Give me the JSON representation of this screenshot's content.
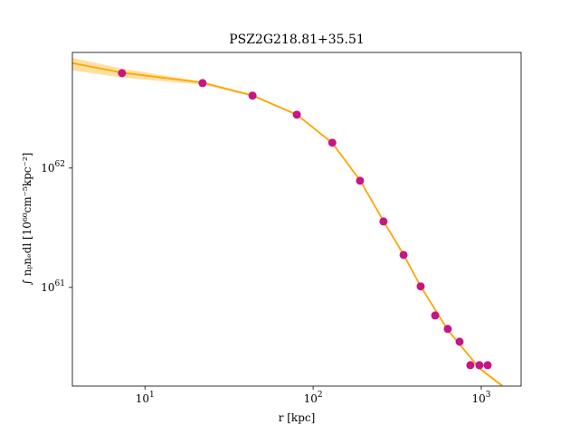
{
  "chart_data": {
    "type": "scatter",
    "title": "PSZ2G218.81+35.51",
    "x_label": "r [kpc]",
    "y_label": "∫ nₚnₑdl [10⁶⁰cm⁻⁵kpc⁻²]",
    "log_x": true,
    "log_y": true,
    "xlim": [
      3.7,
      1725
    ],
    "ylim": [
      1.49e+60,
      9.3e+62
    ],
    "xticks": [
      {
        "value": 10,
        "label": "10^1"
      },
      {
        "value": 100,
        "label": "10^2"
      },
      {
        "value": 1000,
        "label": "10^3"
      }
    ],
    "yticks": [
      {
        "value": 1e+61,
        "label": "10^61"
      },
      {
        "value": 1e+62,
        "label": "10^62"
      }
    ],
    "fit": {
      "color": "#ffa500",
      "band_color": "#ffcc66",
      "x": [
        3.7,
        7.3,
        22,
        43.6,
        80,
        130,
        190,
        262,
        345,
        436,
        632,
        975,
        1330
      ],
      "y": [
        7.57e+62,
        6.3e+62,
        5.2e+62,
        4.05e+62,
        2.8e+62,
        1.62e+62,
        7.9e+61,
        3.6e+61,
        1.88e+61,
        1.02e+61,
        4.4e+60,
        2.1e+60,
        1.5e+60
      ],
      "y_lower": [
        6.58e+62,
        5.72e+62,
        5e+62,
        3.97e+62,
        2.75e+62,
        1.59e+62,
        7.75e+61,
        3.53e+61,
        1.84e+61,
        1e+61,
        4.3e+60,
        2.05e+60,
        1.46e+60
      ],
      "y_upper": [
        8.4e+62,
        6.81e+62,
        5.3e+62,
        4.13e+62,
        2.85e+62,
        1.65e+62,
        8.05e+61,
        3.67e+61,
        1.92e+61,
        1.04e+61,
        4.5e+60,
        2.15e+60,
        1.54e+60
      ]
    },
    "points": {
      "color": "#c71585",
      "x": [
        7.3,
        22,
        43.6,
        80,
        130,
        190,
        262,
        345,
        436,
        532,
        632,
        743,
        861,
        975,
        1091
      ],
      "y": [
        6.24e+62,
        5.15e+62,
        4.04e+62,
        2.8e+62,
        1.63e+62,
        7.83e+61,
        3.57e+61,
        1.87e+61,
        1.02e+61,
        5.82e+60,
        4.49e+60,
        3.51e+60,
        2.23e+60,
        2.23e+60,
        2.23e+60
      ]
    }
  }
}
